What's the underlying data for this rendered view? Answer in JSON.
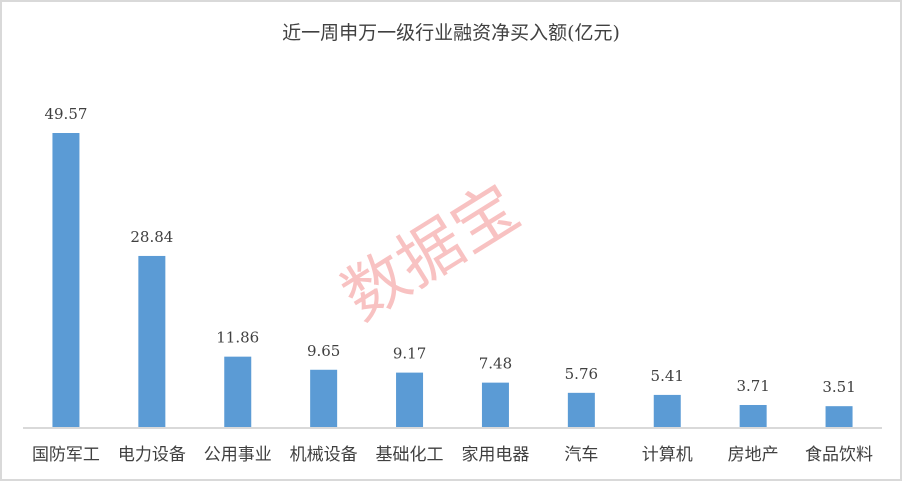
{
  "chart_data": {
    "type": "bar",
    "title": "近一周申万一级行业融资净买入额(亿元)",
    "categories": [
      "国防军工",
      "电力设备",
      "公用事业",
      "机械设备",
      "基础化工",
      "家用电器",
      "汽车",
      "计算机",
      "房地产",
      "食品饮料"
    ],
    "values": [
      49.57,
      28.84,
      11.86,
      9.65,
      9.17,
      7.48,
      5.76,
      5.41,
      3.71,
      3.51
    ],
    "data_labels": [
      "49.57",
      "28.84",
      "11.86",
      "9.65",
      "9.17",
      "7.48",
      "5.76",
      "5.41",
      "3.71",
      "3.51"
    ],
    "xlabel": "",
    "ylabel": "",
    "ylim": [
      0,
      55
    ],
    "grid": false,
    "legend": "none",
    "bar_color": "#5b9bd5"
  },
  "watermark": "数据宝"
}
